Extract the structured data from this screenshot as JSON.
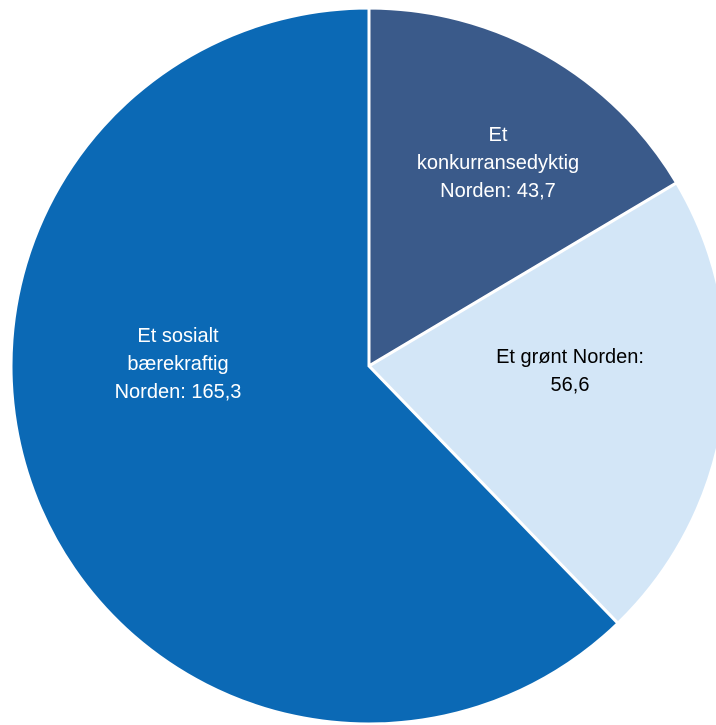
{
  "chart_data": {
    "type": "pie",
    "start_angle_deg": 0,
    "direction": "clockwise",
    "slices": [
      {
        "label_lines": [
          "Et",
          "konkurransedyktig",
          "Norden: 43,7"
        ],
        "value": 43.7,
        "color": "#3a5a8a",
        "label_color": "#ffffff"
      },
      {
        "label_lines": [
          "Et grønt Norden:",
          "56,6"
        ],
        "value": 56.6,
        "color": "#d3e6f7",
        "label_color": "#000000"
      },
      {
        "label_lines": [
          "Et sosialt",
          "bærekraftig",
          "Norden: 165,3"
        ],
        "value": 165.3,
        "color": "#0b69b5",
        "label_color": "#ffffff"
      }
    ]
  }
}
